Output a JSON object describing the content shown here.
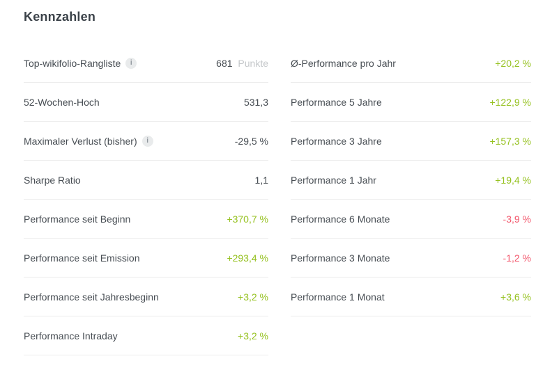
{
  "title": "Kennzahlen",
  "colors": {
    "positive": "#95c11f",
    "negative": "#f2566b",
    "text": "#474d53",
    "unit_muted": "#c4c7ca",
    "divider": "#ececec"
  },
  "info_icon_glyph": "i",
  "columns": [
    {
      "name": "left",
      "rows": [
        {
          "label": "Top-wikifolio-Rangliste",
          "info": true,
          "value": "681",
          "unit": "Punkte",
          "color": "neutral"
        },
        {
          "label": "52-Wochen-Hoch",
          "info": false,
          "value": "531,3",
          "unit": "",
          "color": "neutral"
        },
        {
          "label": "Maximaler Verlust (bisher)",
          "info": true,
          "value": "-29,5 %",
          "unit": "",
          "color": "neutral"
        },
        {
          "label": "Sharpe Ratio",
          "info": false,
          "value": "1,1",
          "unit": "",
          "color": "neutral"
        },
        {
          "label": "Performance seit Beginn",
          "info": false,
          "value": "+370,7 %",
          "unit": "",
          "color": "green"
        },
        {
          "label": "Performance seit Emission",
          "info": false,
          "value": "+293,4 %",
          "unit": "",
          "color": "green"
        },
        {
          "label": "Performance seit Jahresbeginn",
          "info": false,
          "value": "+3,2 %",
          "unit": "",
          "color": "green"
        },
        {
          "label": "Performance Intraday",
          "info": false,
          "value": "+3,2 %",
          "unit": "",
          "color": "green"
        }
      ]
    },
    {
      "name": "right",
      "rows": [
        {
          "label": "Ø-Performance pro Jahr",
          "info": false,
          "value": "+20,2 %",
          "unit": "",
          "color": "green"
        },
        {
          "label": "Performance 5 Jahre",
          "info": false,
          "value": "+122,9 %",
          "unit": "",
          "color": "green"
        },
        {
          "label": "Performance 3 Jahre",
          "info": false,
          "value": "+157,3 %",
          "unit": "",
          "color": "green"
        },
        {
          "label": "Performance 1 Jahr",
          "info": false,
          "value": "+19,4 %",
          "unit": "",
          "color": "green"
        },
        {
          "label": "Performance 6 Monate",
          "info": false,
          "value": "-3,9 %",
          "unit": "",
          "color": "red"
        },
        {
          "label": "Performance 3 Monate",
          "info": false,
          "value": "-1,2 %",
          "unit": "",
          "color": "red"
        },
        {
          "label": "Performance 1 Monat",
          "info": false,
          "value": "+3,6 %",
          "unit": "",
          "color": "green"
        }
      ]
    }
  ]
}
